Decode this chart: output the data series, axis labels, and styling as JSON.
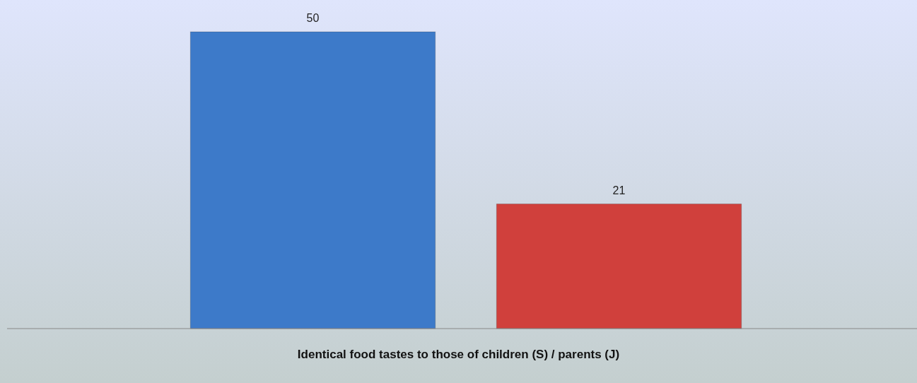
{
  "chart_data": {
    "type": "bar",
    "xlabel": "Identical food tastes to those of children (S) / parents (J)",
    "categories": [
      null,
      null
    ],
    "values": [
      50,
      21
    ],
    "colors": [
      "#3d7ac9",
      "#d0403c"
    ],
    "data_labels": true
  }
}
